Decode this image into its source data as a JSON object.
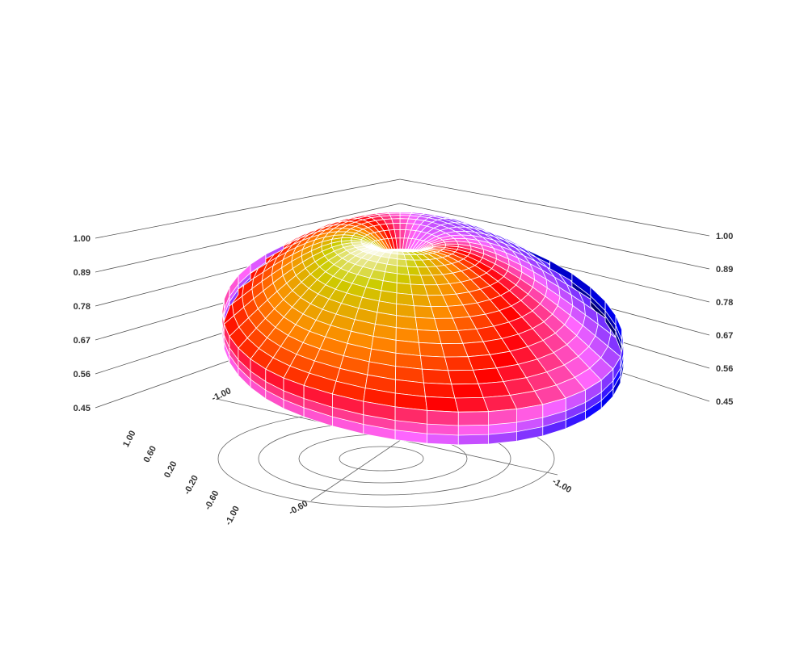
{
  "chart_data": {
    "type": "surface",
    "title": "",
    "z_axis": {
      "ticks": [
        "1.00",
        "0.89",
        "0.78",
        "0.67",
        "0.56",
        "0.45"
      ],
      "range": [
        0.45,
        1.0
      ]
    },
    "x_axis": {
      "ticks": [
        "1.00",
        "0.60",
        "0.20",
        "-0.20",
        "-0.60",
        "-1.00"
      ]
    },
    "polar_floor": {
      "labels": [
        "-1.00",
        "-0.60"
      ],
      "rings": 4
    },
    "colorscale": [
      "#000033",
      "#0000ff",
      "#ff66ff",
      "#ff0000",
      "#ff8800",
      "#cccc00",
      "#ffffff"
    ],
    "grid_color": "#ffffff"
  }
}
